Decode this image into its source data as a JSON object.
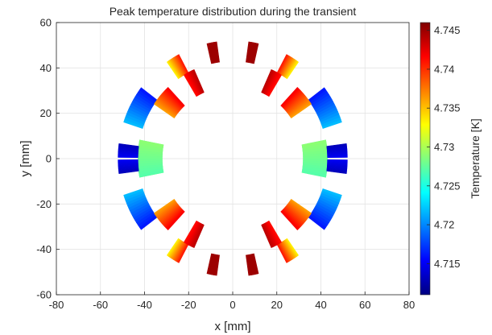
{
  "chart_data": {
    "type": "heatmap",
    "title": "Peak temperature distribution during the transient",
    "xlabel": "x [mm]",
    "ylabel": "y [mm]",
    "xlim": [
      -80,
      80
    ],
    "ylim": [
      -60,
      60
    ],
    "xticks": [
      "-80",
      "-60",
      "-40",
      "-20",
      "0",
      "20",
      "40",
      "60",
      "80"
    ],
    "yticks": [
      "60",
      "40",
      "20",
      "0",
      "-20",
      "-40",
      "-60"
    ],
    "grid": true,
    "colorbar": {
      "label": "Temperature [K]",
      "range": [
        4.711,
        4.746
      ],
      "ticks": [
        "4.745",
        "4.74",
        "4.735",
        "4.73",
        "4.725",
        "4.72",
        "4.715"
      ],
      "colormap": "jet"
    },
    "blocks_right_half": [
      {
        "r_in": 32,
        "r_out": 43,
        "a_start": -11,
        "a_end": 11,
        "t_start": 4.729,
        "t_end": 4.727
      },
      {
        "r_in": 43,
        "r_out": 52,
        "a_start": 0.6,
        "a_end": 7.3,
        "t_start": 4.715,
        "t_end": 4.713
      },
      {
        "r_in": 43,
        "r_out": 52,
        "a_start": 18,
        "a_end": 37,
        "t_start": 4.722,
        "t_end": 4.716
      },
      {
        "r_in": 32,
        "r_out": 43,
        "a_start": 34,
        "a_end": 47,
        "t_start": 4.736,
        "t_end": 4.742
      },
      {
        "r_in": 43,
        "r_out": 52,
        "a_start": 55,
        "a_end": 62,
        "t_start": 4.733,
        "t_end": 4.741
      },
      {
        "r_in": 32,
        "r_out": 43,
        "a_start": 59,
        "a_end": 66,
        "t_start": 4.741,
        "t_end": 4.744
      },
      {
        "r_in": 43,
        "r_out": 52,
        "a_start": 77,
        "a_end": 82,
        "t_start": 4.745,
        "t_end": 4.745
      }
    ]
  }
}
